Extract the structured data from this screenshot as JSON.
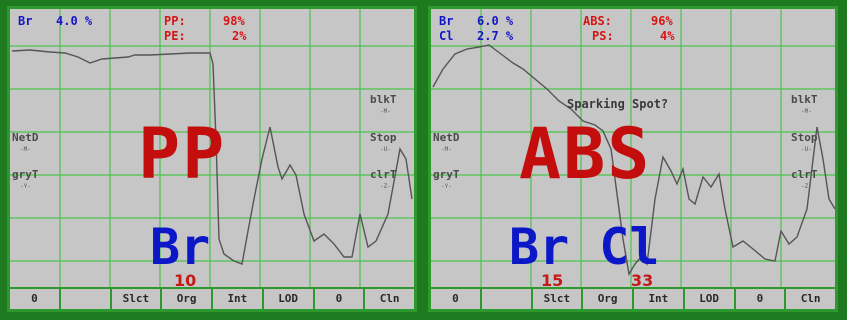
{
  "left": {
    "br_label": "Br",
    "br_value": "4.0 %",
    "pp_label": "PP:",
    "pp_value": "98%",
    "pe_label": "PE:",
    "pe_value": "2%",
    "side_right": [
      {
        "label": "blkT",
        "sub": "-M-"
      },
      {
        "label": "Stop",
        "sub": "-U-"
      },
      {
        "label": "clrT",
        "sub": "-Z-"
      }
    ],
    "side_left": [
      {
        "label": "NetD",
        "sub": "-M-"
      },
      {
        "label": "gryT",
        "sub": "-Y-"
      }
    ],
    "big_label": "PP",
    "element_label": "Br",
    "element_count": "10",
    "buttons": [
      "0",
      "",
      "Slct",
      "Org",
      "Int",
      "LOD",
      "0",
      "Cln"
    ]
  },
  "right": {
    "br_label": "Br",
    "br_value": "6.0 %",
    "cl_label": "Cl",
    "cl_value": "2.7 %",
    "abs_label": "ABS:",
    "abs_value": "96%",
    "ps_label": "PS:",
    "ps_value": "4%",
    "annotation": "Sparking Spot?",
    "side_right": [
      {
        "label": "blkT",
        "sub": "-M-"
      },
      {
        "label": "Stop",
        "sub": "-U-"
      },
      {
        "label": "clrT",
        "sub": "-Z-"
      }
    ],
    "side_left": [
      {
        "label": "NetD",
        "sub": "-M-"
      },
      {
        "label": "gryT",
        "sub": "-Y-"
      }
    ],
    "big_label": "ABS",
    "element_label": "Br Cl",
    "count_br": "15",
    "count_cl": "33",
    "buttons": [
      "0",
      "",
      "Slct",
      "Org",
      "Int",
      "LOD",
      "0",
      "Cln"
    ]
  },
  "colors": {
    "background": "#1e7a1e",
    "panel": "#c6c6c6",
    "grid": "#4cc24c",
    "header_blue": "#1515c8",
    "header_red": "#d81414",
    "big_red": "#c40d0d",
    "big_blue": "#0c18c8"
  }
}
